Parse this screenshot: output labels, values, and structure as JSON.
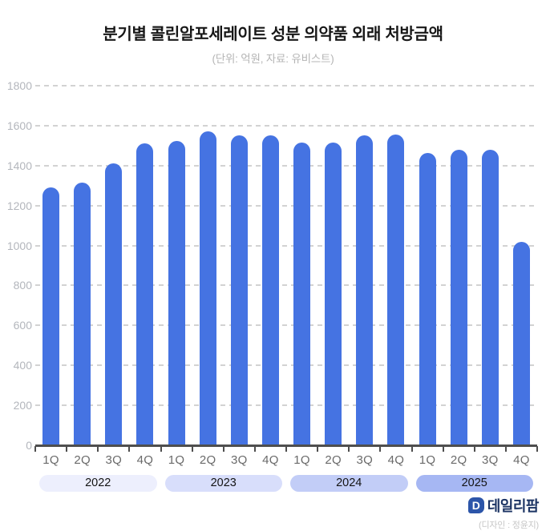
{
  "header": {
    "title": "분기별 콜린알포세레이트 성분 의약품 외래 처방금액",
    "subtitle": "(단위: 억원, 자료: 유비스트)"
  },
  "chart_data": {
    "type": "bar",
    "title": "분기별 콜린알포세레이트 성분 의약품 외래 처방금액",
    "unit_source_note": "(단위: 억원, 자료: 유비스트)",
    "categories": [
      "1Q",
      "2Q",
      "3Q",
      "4Q",
      "1Q",
      "2Q",
      "3Q",
      "4Q",
      "1Q",
      "2Q",
      "3Q",
      "4Q",
      "1Q",
      "2Q",
      "3Q",
      "4Q"
    ],
    "values": [
      1290,
      1315,
      1410,
      1510,
      1525,
      1570,
      1550,
      1550,
      1515,
      1515,
      1550,
      1555,
      1465,
      1480,
      1480,
      1020
    ],
    "year_groups": [
      {
        "label": "2022",
        "pill_color": "#edeffd"
      },
      {
        "label": "2023",
        "pill_color": "#d8defb"
      },
      {
        "label": "2024",
        "pill_color": "#c2cdf7"
      },
      {
        "label": "2025",
        "pill_color": "#a6b7f3"
      }
    ],
    "xlabel": "",
    "ylabel": "",
    "ylim": [
      0,
      1800
    ],
    "ytick_step": 200,
    "yticks": [
      0,
      200,
      400,
      600,
      800,
      1000,
      1200,
      1400,
      1600,
      1800
    ],
    "grid": "horizontal-dashed",
    "legend": "none",
    "bar_color": "#4573e2",
    "axis_color": "#4e4e4e",
    "gridline_color": "#d2d2d2",
    "ylabel_color": "#b3b6bc",
    "xlabel_color": "#6a6a6a"
  },
  "footer": {
    "logo_icon": "dailypharm-d-icon",
    "logo_icon_letter": "D",
    "logo_text": "데일리팜",
    "credit": "(디자인 : 정윤지)"
  }
}
